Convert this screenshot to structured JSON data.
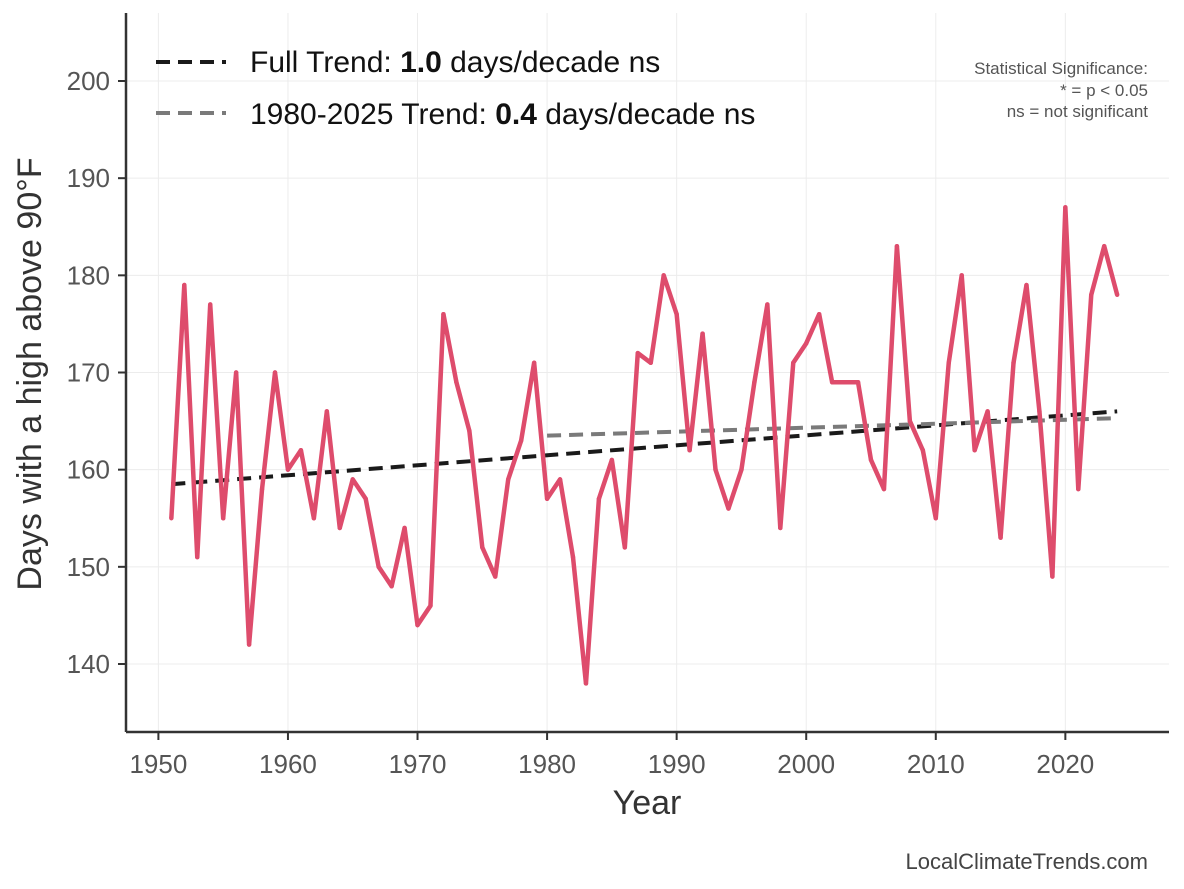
{
  "chart_data": {
    "type": "line",
    "xlabel": "Year",
    "ylabel": "Days with a high above 90°F",
    "xlim": [
      1947.5,
      2028
    ],
    "ylim": [
      133,
      207
    ],
    "xticks": [
      1950,
      1960,
      1970,
      1980,
      1990,
      2000,
      2010,
      2020
    ],
    "yticks": [
      140,
      150,
      160,
      170,
      180,
      190,
      200
    ],
    "grid": true,
    "series": [
      {
        "name": "",
        "color": "#de4c6c",
        "x": [
          1951,
          1952,
          1953,
          1954,
          1955,
          1956,
          1957,
          1958,
          1959,
          1960,
          1961,
          1962,
          1963,
          1964,
          1965,
          1966,
          1967,
          1968,
          1969,
          1970,
          1971,
          1972,
          1973,
          1974,
          1975,
          1976,
          1977,
          1978,
          1979,
          1980,
          1981,
          1982,
          1983,
          1984,
          1985,
          1986,
          1987,
          1988,
          1989,
          1990,
          1991,
          1992,
          1993,
          1994,
          1995,
          1996,
          1997,
          1998,
          1999,
          2000,
          2001,
          2002,
          2003,
          2004,
          2005,
          2006,
          2007,
          2008,
          2009,
          2010,
          2011,
          2012,
          2013,
          2014,
          2015,
          2016,
          2017,
          2018,
          2019,
          2020,
          2021,
          2022,
          2023,
          2024
        ],
        "y": [
          155,
          179,
          151,
          177,
          155,
          170,
          142,
          158,
          170,
          160,
          162,
          155,
          166,
          154,
          159,
          157,
          150,
          148,
          154,
          144,
          146,
          176,
          169,
          164,
          152,
          149,
          159,
          163,
          171,
          157,
          159,
          151,
          138,
          157,
          161,
          152,
          172,
          171,
          180,
          176,
          162,
          174,
          160,
          156,
          160,
          169,
          177,
          154,
          171,
          173,
          176,
          169,
          169,
          169,
          161,
          158,
          183,
          165,
          162,
          155,
          171,
          180,
          162,
          166,
          153,
          171,
          179,
          166,
          149,
          187,
          158,
          178,
          183,
          178
        ]
      }
    ],
    "trends": [
      {
        "name": "Full Trend",
        "legend_prefix": "Full Trend: ",
        "rate": "1.0",
        "legend_suffix": " days/decade ns",
        "x": [
          1951,
          2024
        ],
        "y": [
          158.5,
          166.0
        ],
        "color": "#1a1a1a"
      },
      {
        "name": "1980-2025 Trend",
        "legend_prefix": "1980-2025 Trend: ",
        "rate": "0.4",
        "legend_suffix": " days/decade ns",
        "x": [
          1980,
          2024
        ],
        "y": [
          163.5,
          165.3
        ],
        "color": "#7a7a7a"
      }
    ],
    "legend_position": "top-left",
    "significance_note": [
      "Statistical Significance:",
      "* = p < 0.05",
      "ns = not significant"
    ],
    "credit": "LocalClimateTrends.com"
  }
}
